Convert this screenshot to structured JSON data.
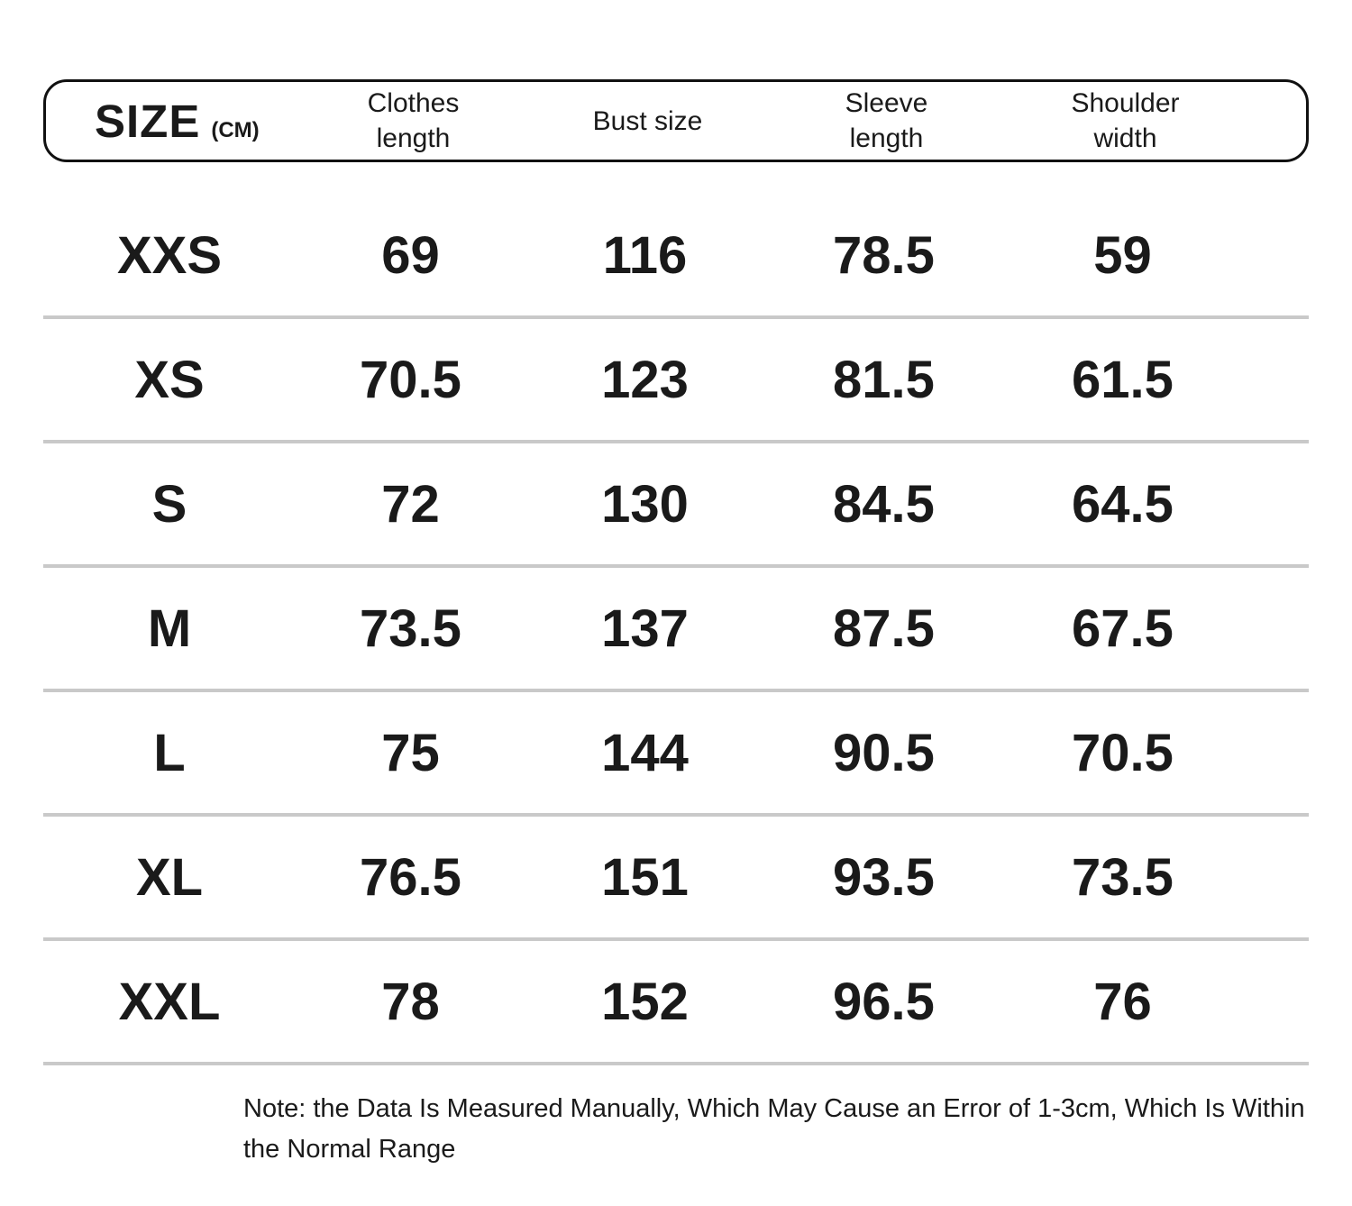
{
  "header": {
    "size_label": "SIZE",
    "unit_label": "(CM)",
    "columns": [
      {
        "line1": "Clothes",
        "line2": "length"
      },
      {
        "line1": "Bust size",
        "line2": ""
      },
      {
        "line1": "Sleeve",
        "line2": "length"
      },
      {
        "line1": "Shoulder",
        "line2": "width"
      }
    ]
  },
  "note": "Note: the Data Is Measured Manually, Which May Cause an Error of 1-3cm, Which Is Within the Normal Range",
  "colors": {
    "border": "#111111",
    "divider": "#c9c9c9",
    "text": "#1a1a1a",
    "background": "#ffffff"
  },
  "chart_data": {
    "type": "table",
    "title": "SIZE (CM)",
    "columns": [
      "SIZE (CM)",
      "Clothes length",
      "Bust size",
      "Sleeve length",
      "Shoulder width"
    ],
    "rows": [
      [
        "XXS",
        69,
        116,
        78.5,
        59
      ],
      [
        "XS",
        70.5,
        123,
        81.5,
        61.5
      ],
      [
        "S",
        72,
        130,
        84.5,
        64.5
      ],
      [
        "M",
        73.5,
        137,
        87.5,
        67.5
      ],
      [
        "L",
        75,
        144,
        90.5,
        70.5
      ],
      [
        "XL",
        76.5,
        151,
        93.5,
        73.5
      ],
      [
        "XXL",
        78,
        152,
        96.5,
        76
      ]
    ],
    "note": "Note: the Data Is Measured Manually, Which May Cause an Error of 1-3cm, Which Is Within the Normal Range"
  }
}
